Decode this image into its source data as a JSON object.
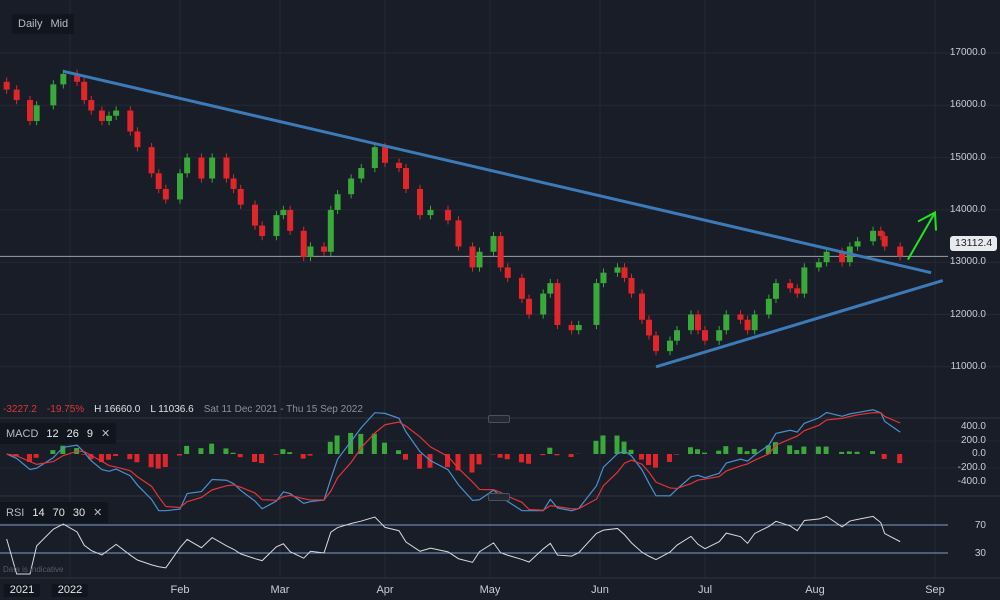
{
  "toolbar": {
    "interval": "Daily",
    "price_type": "Mid"
  },
  "info": {
    "change": "-3227.2",
    "change_pct": "-19.75%",
    "high": "H 16660.0",
    "low": "L 11036.6",
    "range": "Sat 11 Dec 2021 - Thu 15 Sep 2022"
  },
  "current_price": "13112.4",
  "macd": {
    "label": "MACD",
    "params": [
      "12",
      "26",
      "9"
    ],
    "ticks": [
      "400.0",
      "200.0",
      "0.0",
      "-200.0",
      "-400.0"
    ]
  },
  "rsi": {
    "label": "RSI",
    "params": [
      "14",
      "70",
      "30"
    ],
    "ticks": [
      "70",
      "30"
    ]
  },
  "footer_note": "Data is indicative",
  "colors": {
    "up": "#3aa83a",
    "down": "#e0262b",
    "trendline": "#3d7ab8",
    "arrow": "#22e522",
    "macd_line": "#4a90d0",
    "signal_line": "#e0353a",
    "rsi_line": "#d8dade"
  },
  "icons": {
    "close": "close-icon"
  },
  "chart_data": {
    "type": "candlestick",
    "y_ticks": [
      "17000.0",
      "16000.0",
      "15000.0",
      "14000.0",
      "13000.0",
      "12000.0",
      "11000.0"
    ],
    "ylim": [
      10200,
      17600
    ],
    "x_ticks": [
      "2021",
      "2022",
      "Feb",
      "Mar",
      "Apr",
      "May",
      "Jun",
      "Jul",
      "Aug",
      "Sep"
    ],
    "candles": [
      [
        "2021-12-13",
        16300
      ],
      [
        "2021-12-16",
        16100
      ],
      [
        "2021-12-20",
        15700
      ],
      [
        "2021-12-22",
        16000
      ],
      [
        "2021-12-27",
        16400
      ],
      [
        "2021-12-30",
        16600
      ],
      [
        "2022-01-03",
        16450
      ],
      [
        "2022-01-05",
        16100
      ],
      [
        "2022-01-07",
        15900
      ],
      [
        "2022-01-10",
        15700
      ],
      [
        "2022-01-12",
        15800
      ],
      [
        "2022-01-14",
        15900
      ],
      [
        "2022-01-18",
        15500
      ],
      [
        "2022-01-20",
        15200
      ],
      [
        "2022-01-24",
        14700
      ],
      [
        "2022-01-26",
        14400
      ],
      [
        "2022-01-28",
        14200
      ],
      [
        "2022-02-01",
        14700
      ],
      [
        "2022-02-03",
        15000
      ],
      [
        "2022-02-07",
        14600
      ],
      [
        "2022-02-10",
        15000
      ],
      [
        "2022-02-14",
        14600
      ],
      [
        "2022-02-16",
        14400
      ],
      [
        "2022-02-18",
        14100
      ],
      [
        "2022-02-22",
        13700
      ],
      [
        "2022-02-24",
        13500
      ],
      [
        "2022-02-28",
        13900
      ],
      [
        "2022-03-02",
        14000
      ],
      [
        "2022-03-04",
        13600
      ],
      [
        "2022-03-08",
        13100
      ],
      [
        "2022-03-10",
        13300
      ],
      [
        "2022-03-14",
        13200
      ],
      [
        "2022-03-16",
        14000
      ],
      [
        "2022-03-18",
        14300
      ],
      [
        "2022-03-22",
        14600
      ],
      [
        "2022-03-25",
        14800
      ],
      [
        "2022-03-29",
        15200
      ],
      [
        "2022-04-01",
        14900
      ],
      [
        "2022-04-05",
        14800
      ],
      [
        "2022-04-07",
        14400
      ],
      [
        "2022-04-11",
        13900
      ],
      [
        "2022-04-14",
        14000
      ],
      [
        "2022-04-19",
        13800
      ],
      [
        "2022-04-22",
        13300
      ],
      [
        "2022-04-26",
        12900
      ],
      [
        "2022-04-28",
        13200
      ],
      [
        "2022-05-02",
        13500
      ],
      [
        "2022-05-04",
        12900
      ],
      [
        "2022-05-06",
        12700
      ],
      [
        "2022-05-10",
        12300
      ],
      [
        "2022-05-12",
        12000
      ],
      [
        "2022-05-16",
        12400
      ],
      [
        "2022-05-18",
        12600
      ],
      [
        "2022-05-20",
        11800
      ],
      [
        "2022-05-24",
        11700
      ],
      [
        "2022-05-26",
        11800
      ],
      [
        "2022-05-31",
        12600
      ],
      [
        "2022-06-02",
        12800
      ],
      [
        "2022-06-06",
        12900
      ],
      [
        "2022-06-08",
        12700
      ],
      [
        "2022-06-10",
        12400
      ],
      [
        "2022-06-13",
        11900
      ],
      [
        "2022-06-15",
        11600
      ],
      [
        "2022-06-17",
        11300
      ],
      [
        "2022-06-21",
        11500
      ],
      [
        "2022-06-23",
        11700
      ],
      [
        "2022-06-27",
        12000
      ],
      [
        "2022-06-29",
        11700
      ],
      [
        "2022-07-01",
        11500
      ],
      [
        "2022-07-05",
        11700
      ],
      [
        "2022-07-07",
        12000
      ],
      [
        "2022-07-11",
        11900
      ],
      [
        "2022-07-13",
        11700
      ],
      [
        "2022-07-15",
        12000
      ],
      [
        "2022-07-19",
        12300
      ],
      [
        "2022-07-21",
        12600
      ],
      [
        "2022-07-25",
        12500
      ],
      [
        "2022-07-27",
        12400
      ],
      [
        "2022-07-29",
        12900
      ],
      [
        "2022-08-02",
        13000
      ],
      [
        "2022-08-04",
        13200
      ],
      [
        "2022-08-08",
        13000
      ],
      [
        "2022-08-10",
        13300
      ],
      [
        "2022-08-12",
        13400
      ],
      [
        "2022-08-16",
        13600
      ],
      [
        "2022-08-18",
        13500
      ],
      [
        "2022-08-19",
        13300
      ],
      [
        "2022-08-23",
        13112.4
      ]
    ],
    "trendlines": [
      {
        "from": [
          "2021-12-30",
          16650
        ],
        "to": [
          "2022-08-31",
          12800
        ]
      },
      {
        "from": [
          "2022-06-17",
          11000
        ],
        "to": [
          "2022-09-03",
          12650
        ]
      }
    ],
    "arrow": {
      "from": [
        "2022-08-25",
        13050
      ],
      "to": [
        "2022-09-01",
        13950
      ]
    },
    "horizontal_line": 13112.4
  }
}
